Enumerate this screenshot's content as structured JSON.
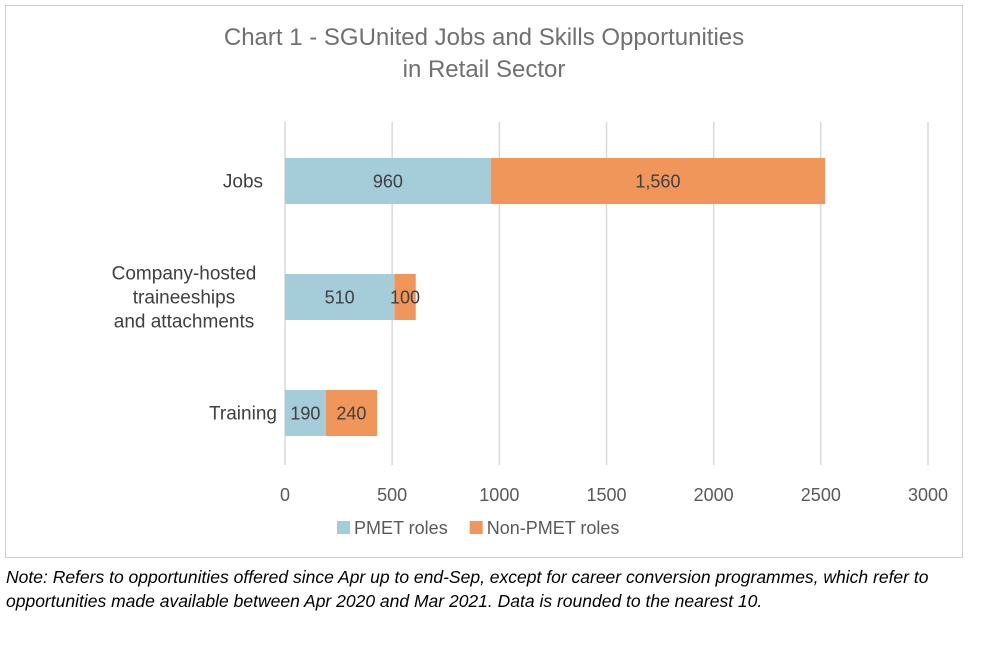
{
  "chart_data": {
    "type": "bar",
    "orientation": "horizontal",
    "stacked": true,
    "title_lines": [
      "Chart 1 - SGUnited Jobs and Skills Opportunities",
      "in Retail Sector"
    ],
    "categories": [
      {
        "lines": [
          "Jobs"
        ]
      },
      {
        "lines": [
          "Company-hosted",
          "traineeships",
          "and attachments"
        ]
      },
      {
        "lines": [
          "Training"
        ]
      }
    ],
    "series": [
      {
        "name": "PMET roles",
        "color": "#A5CCD9",
        "values": [
          960,
          510,
          190
        ],
        "labels": [
          "960",
          "510",
          "190"
        ]
      },
      {
        "name": "Non-PMET roles",
        "color": "#F0965A",
        "values": [
          1560,
          100,
          240
        ],
        "labels": [
          "1,560",
          "100",
          "240"
        ]
      }
    ],
    "xlim": [
      0,
      3000
    ],
    "xticks": [
      "0",
      "500",
      "1000",
      "1500",
      "2000",
      "2500",
      "3000"
    ],
    "grid": true,
    "legend_position": "bottom"
  },
  "note": "Note: Refers to opportunities offered since Apr up to end-Sep, except for career conversion programmes, which refer to opportunities made available between Apr 2020 and Mar 2021. Data is rounded to the nearest 10."
}
